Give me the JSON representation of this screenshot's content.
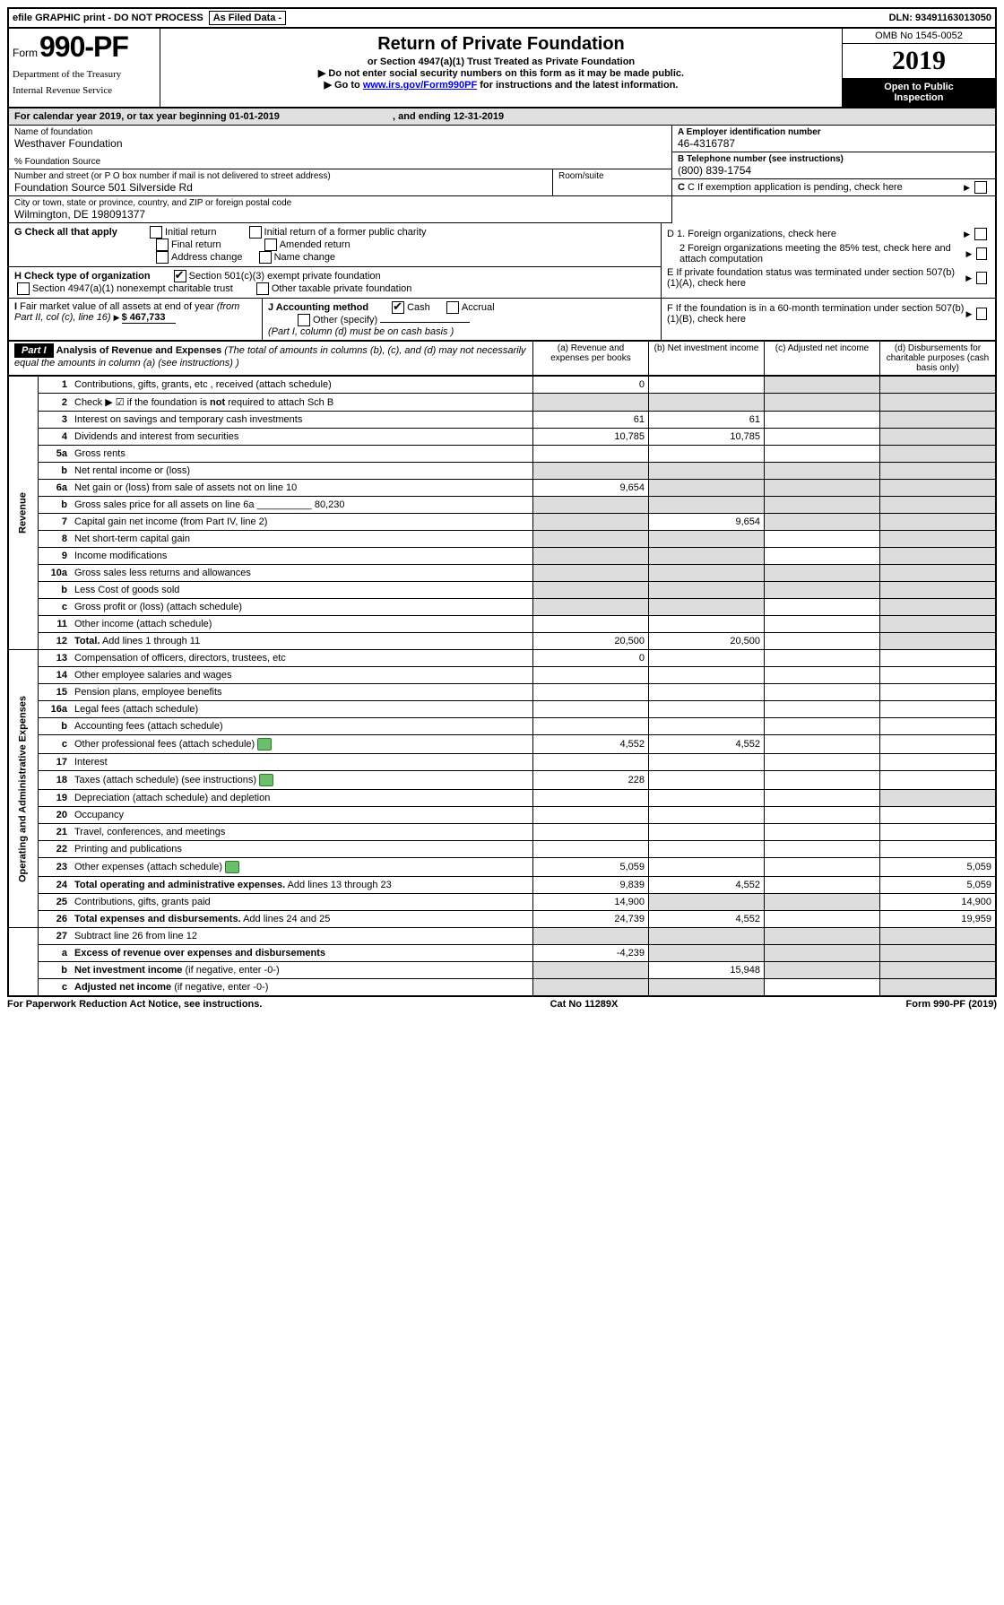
{
  "topbar": {
    "efile": "efile GRAPHIC print - DO NOT PROCESS",
    "asfiled": "As Filed Data -",
    "dln_label": "DLN:",
    "dln": "93491163013050"
  },
  "header": {
    "form_word": "Form",
    "form_no": "990-PF",
    "dept1": "Department of the Treasury",
    "dept2": "Internal Revenue Service",
    "title": "Return of Private Foundation",
    "subtitle": "or Section 4947(a)(1) Trust Treated as Private Foundation",
    "arrow1": "▶ Do not enter social security numbers on this form as it may be made public.",
    "arrow2_pre": "▶ Go to ",
    "arrow2_link": "www.irs.gov/Form990PF",
    "arrow2_post": " for instructions and the latest information.",
    "omb": "OMB No 1545-0052",
    "year": "2019",
    "open1": "Open to Public",
    "open2": "Inspection"
  },
  "cal": {
    "text_a": "For calendar year 2019, or tax year beginning 01-01-2019",
    "text_b": ", and ending 12-31-2019"
  },
  "id": {
    "name_lbl": "Name of foundation",
    "name": "Westhaver Foundation",
    "pct": "% Foundation Source",
    "addr_lbl": "Number and street (or P O  box number if mail is not delivered to street address)",
    "addr": "Foundation Source 501 Silverside Rd",
    "room_lbl": "Room/suite",
    "city_lbl": "City or town, state or province, country, and ZIP or foreign postal code",
    "city": "Wilmington, DE  198091377",
    "ein_lbl": "A Employer identification number",
    "ein": "46-4316787",
    "tel_lbl": "B Telephone number (see instructions)",
    "tel": "(800) 839-1754",
    "c_lbl": "C If exemption application is pending, check here"
  },
  "g": {
    "label": "G Check all that apply",
    "opts": [
      "Initial return",
      "Initial return of a former public charity",
      "Final return",
      "Amended return",
      "Address change",
      "Name change"
    ]
  },
  "h": {
    "label": "H Check type of organization",
    "opt1": "Section 501(c)(3) exempt private foundation",
    "opt2": "Section 4947(a)(1) nonexempt charitable trust",
    "opt3": "Other taxable private foundation"
  },
  "i": {
    "label": "I Fair market value of all assets at end of year (from Part II, col  (c), line 16)",
    "amount": "$  467,733"
  },
  "j": {
    "label": "J Accounting method",
    "cash": "Cash",
    "accrual": "Accrual",
    "other": "Other (specify)",
    "note": "(Part I, column (d) must be on cash basis )"
  },
  "d": {
    "d1": "D 1. Foreign organizations, check here",
    "d2": "2  Foreign organizations meeting the 85% test, check here and attach computation",
    "e": "E  If private foundation status was terminated under section 507(b)(1)(A), check here",
    "f": "F  If the foundation is in a 60-month termination under section 507(b)(1)(B), check here"
  },
  "part1": {
    "label": "Part I",
    "title": "Analysis of Revenue and Expenses",
    "note": "(The total of amounts in columns (b), (c), and (d) may not necessarily equal the amounts in column (a) (see instructions) )",
    "col_a": "(a)  Revenue and expenses per books",
    "col_b": "(b)  Net investment income",
    "col_c": "(c)  Adjusted net income",
    "col_d": "(d)  Disbursements for charitable purposes (cash basis only)"
  },
  "sidelabels": {
    "rev": "Revenue",
    "exp": "Operating and Administrative Expenses"
  },
  "rows": [
    {
      "n": "1",
      "d": "Contributions, gifts, grants, etc , received (attach schedule)",
      "a": "0",
      "b": "",
      "c": "shaded",
      "dcol": "shaded"
    },
    {
      "n": "2",
      "d": "Check ▶ ☑ if the foundation is <b>not</b> required to attach Sch  B",
      "a": "shaded",
      "b": "shaded",
      "c": "shaded",
      "dcol": "shaded"
    },
    {
      "n": "3",
      "d": "Interest on savings and temporary cash investments",
      "a": "61",
      "b": "61",
      "c": "",
      "dcol": "shaded"
    },
    {
      "n": "4",
      "d": "Dividends and interest from securities",
      "a": "10,785",
      "b": "10,785",
      "c": "",
      "dcol": "shaded"
    },
    {
      "n": "5a",
      "d": "Gross rents",
      "a": "",
      "b": "",
      "c": "",
      "dcol": "shaded"
    },
    {
      "n": "b",
      "d": "Net rental income or (loss)",
      "a": "shaded",
      "b": "shaded",
      "c": "shaded",
      "dcol": "shaded"
    },
    {
      "n": "6a",
      "d": "Net gain or (loss) from sale of assets not on line 10",
      "a": "9,654",
      "b": "shaded",
      "c": "shaded",
      "dcol": "shaded"
    },
    {
      "n": "b",
      "d": "Gross sales price for all assets on line 6a __________ 80,230",
      "a": "shaded",
      "b": "shaded",
      "c": "shaded",
      "dcol": "shaded"
    },
    {
      "n": "7",
      "d": "Capital gain net income (from Part IV, line 2)",
      "a": "shaded",
      "b": "9,654",
      "c": "shaded",
      "dcol": "shaded"
    },
    {
      "n": "8",
      "d": "Net short-term capital gain",
      "a": "shaded",
      "b": "shaded",
      "c": "",
      "dcol": "shaded"
    },
    {
      "n": "9",
      "d": "Income modifications",
      "a": "shaded",
      "b": "shaded",
      "c": "",
      "dcol": "shaded"
    },
    {
      "n": "10a",
      "d": "Gross sales less returns and allowances",
      "a": "shaded",
      "b": "shaded",
      "c": "shaded",
      "dcol": "shaded"
    },
    {
      "n": "b",
      "d": "Less  Cost of goods sold",
      "a": "shaded",
      "b": "shaded",
      "c": "shaded",
      "dcol": "shaded"
    },
    {
      "n": "c",
      "d": "Gross profit or (loss) (attach schedule)",
      "a": "shaded",
      "b": "shaded",
      "c": "",
      "dcol": "shaded"
    },
    {
      "n": "11",
      "d": "Other income (attach schedule)",
      "a": "",
      "b": "",
      "c": "",
      "dcol": "shaded"
    },
    {
      "n": "12",
      "d": "<b>Total.</b> Add lines 1 through 11",
      "a": "20,500",
      "b": "20,500",
      "c": "",
      "dcol": "shaded"
    }
  ],
  "exp_rows": [
    {
      "n": "13",
      "d": "Compensation of officers, directors, trustees, etc",
      "a": "0",
      "b": "",
      "c": "",
      "dcol": ""
    },
    {
      "n": "14",
      "d": "Other employee salaries and wages",
      "a": "",
      "b": "",
      "c": "",
      "dcol": ""
    },
    {
      "n": "15",
      "d": "Pension plans, employee benefits",
      "a": "",
      "b": "",
      "c": "",
      "dcol": ""
    },
    {
      "n": "16a",
      "d": "Legal fees (attach schedule)",
      "a": "",
      "b": "",
      "c": "",
      "dcol": ""
    },
    {
      "n": "b",
      "d": "Accounting fees (attach schedule)",
      "a": "",
      "b": "",
      "c": "",
      "dcol": ""
    },
    {
      "n": "c",
      "d": "Other professional fees (attach schedule)",
      "icon": true,
      "a": "4,552",
      "b": "4,552",
      "c": "",
      "dcol": ""
    },
    {
      "n": "17",
      "d": "Interest",
      "a": "",
      "b": "",
      "c": "",
      "dcol": ""
    },
    {
      "n": "18",
      "d": "Taxes (attach schedule) (see instructions)",
      "icon": true,
      "a": "228",
      "b": "",
      "c": "",
      "dcol": ""
    },
    {
      "n": "19",
      "d": "Depreciation (attach schedule) and depletion",
      "a": "",
      "b": "",
      "c": "",
      "dcol": "shaded"
    },
    {
      "n": "20",
      "d": "Occupancy",
      "a": "",
      "b": "",
      "c": "",
      "dcol": ""
    },
    {
      "n": "21",
      "d": "Travel, conferences, and meetings",
      "a": "",
      "b": "",
      "c": "",
      "dcol": ""
    },
    {
      "n": "22",
      "d": "Printing and publications",
      "a": "",
      "b": "",
      "c": "",
      "dcol": ""
    },
    {
      "n": "23",
      "d": "Other expenses (attach schedule)",
      "icon": true,
      "a": "5,059",
      "b": "",
      "c": "",
      "dcol": "5,059"
    },
    {
      "n": "24",
      "d": "<b>Total operating and administrative expenses.</b> Add lines 13 through 23",
      "a": "9,839",
      "b": "4,552",
      "c": "",
      "dcol": "5,059"
    },
    {
      "n": "25",
      "d": "Contributions, gifts, grants paid",
      "a": "14,900",
      "b": "shaded",
      "c": "shaded",
      "dcol": "14,900"
    },
    {
      "n": "26",
      "d": "<b>Total expenses and disbursements.</b> Add lines 24 and 25",
      "a": "24,739",
      "b": "4,552",
      "c": "",
      "dcol": "19,959"
    }
  ],
  "summary_rows": [
    {
      "n": "27",
      "d": "Subtract line 26 from line 12",
      "a": "shaded",
      "b": "shaded",
      "c": "shaded",
      "dcol": "shaded"
    },
    {
      "n": "a",
      "d": "<b>Excess of revenue over expenses and disbursements</b>",
      "a": "-4,239",
      "b": "shaded",
      "c": "shaded",
      "dcol": "shaded"
    },
    {
      "n": "b",
      "d": "<b>Net investment income</b> (if negative, enter -0-)",
      "a": "shaded",
      "b": "15,948",
      "c": "shaded",
      "dcol": "shaded"
    },
    {
      "n": "c",
      "d": "<b>Adjusted net income</b> (if negative, enter -0-)",
      "a": "shaded",
      "b": "shaded",
      "c": "",
      "dcol": "shaded"
    }
  ],
  "footer": {
    "left": "For Paperwork Reduction Act Notice, see instructions.",
    "mid": "Cat  No  11289X",
    "right": "Form 990-PF (2019)"
  }
}
